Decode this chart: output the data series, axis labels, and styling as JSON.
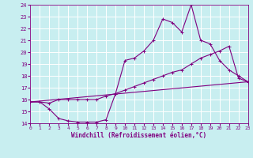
{
  "xlabel": "Windchill (Refroidissement éolien,°C)",
  "bg_color": "#c8eef0",
  "grid_color": "#ffffff",
  "line_color": "#800080",
  "xmin": 0,
  "xmax": 23,
  "ymin": 14,
  "ymax": 24,
  "yticks": [
    14,
    15,
    16,
    17,
    18,
    19,
    20,
    21,
    22,
    23,
    24
  ],
  "xticks": [
    0,
    1,
    2,
    3,
    4,
    5,
    6,
    7,
    8,
    9,
    10,
    11,
    12,
    13,
    14,
    15,
    16,
    17,
    18,
    19,
    20,
    21,
    22,
    23
  ],
  "line1_x": [
    0,
    1,
    2,
    3,
    4,
    5,
    6,
    7,
    8,
    9,
    10,
    11,
    12,
    13,
    14,
    15,
    16,
    17,
    18,
    19,
    20,
    21,
    22,
    23
  ],
  "line1_y": [
    15.8,
    15.8,
    15.2,
    14.4,
    14.2,
    14.1,
    14.1,
    14.1,
    14.3,
    16.5,
    19.3,
    19.5,
    20.1,
    21.0,
    22.8,
    22.5,
    21.7,
    24.0,
    21.0,
    20.7,
    19.3,
    18.5,
    18.0,
    17.5
  ],
  "line2_x": [
    0,
    1,
    2,
    3,
    4,
    5,
    6,
    7,
    8,
    9,
    10,
    11,
    12,
    13,
    14,
    15,
    16,
    17,
    18,
    19,
    20,
    21,
    22,
    23
  ],
  "line2_y": [
    15.8,
    15.8,
    15.7,
    16.0,
    16.0,
    16.0,
    16.0,
    16.0,
    16.3,
    16.5,
    16.8,
    17.1,
    17.4,
    17.7,
    18.0,
    18.3,
    18.5,
    19.0,
    19.5,
    19.8,
    20.1,
    20.5,
    17.8,
    17.5
  ],
  "line3_x": [
    0,
    23
  ],
  "line3_y": [
    15.8,
    17.5
  ]
}
